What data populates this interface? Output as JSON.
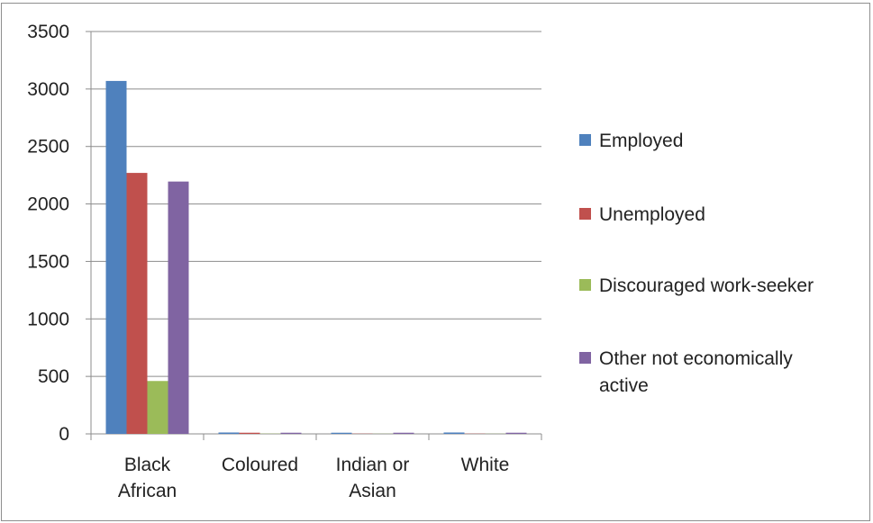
{
  "chart_data": {
    "type": "bar",
    "categories": [
      [
        "Black",
        "African"
      ],
      [
        "Coloured"
      ],
      [
        "Indian or",
        "Asian"
      ],
      [
        "White"
      ]
    ],
    "series": [
      {
        "name": "Employed",
        "color": "#4f81bd",
        "values": [
          3070,
          12,
          10,
          12
        ]
      },
      {
        "name": "Unemployed",
        "color": "#c0504d",
        "values": [
          2270,
          10,
          2,
          2
        ]
      },
      {
        "name": "Discouraged work-seeker",
        "color": "#9bbb59",
        "values": [
          460,
          2,
          1,
          1
        ]
      },
      {
        "name": "Other not economically active",
        "color": "#8064a2",
        "values": [
          2195,
          10,
          10,
          10
        ]
      }
    ],
    "ylim": [
      0,
      3500
    ],
    "yticks": [
      0,
      500,
      1000,
      1500,
      2000,
      2500,
      3000,
      3500
    ],
    "grid": true,
    "legend_position": "right",
    "legend_lines": [
      [
        "Employed"
      ],
      [
        "Unemployed"
      ],
      [
        "Discouraged work-seeker"
      ],
      [
        "Other not economically",
        "active"
      ]
    ]
  }
}
